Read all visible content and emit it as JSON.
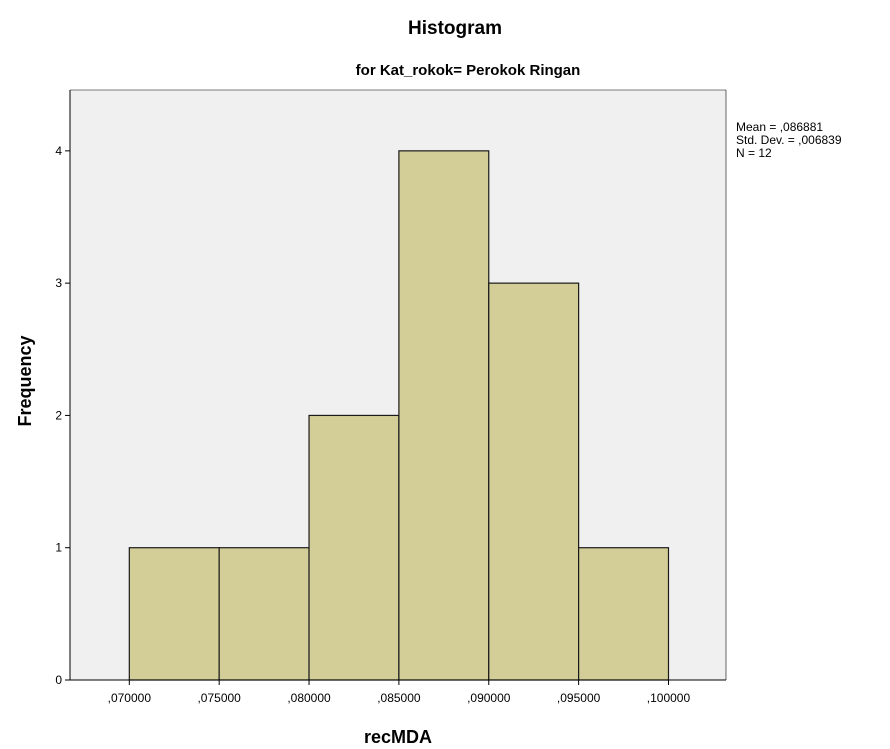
{
  "chart_data": {
    "type": "bar",
    "title": "Histogram",
    "subtitle": "for Kat_rokok= Perokok Ringan",
    "xlabel": "recMDA",
    "ylabel": "Frequency",
    "bins": [
      {
        "start": 0.07,
        "end": 0.075,
        "count": 1
      },
      {
        "start": 0.075,
        "end": 0.08,
        "count": 1
      },
      {
        "start": 0.08,
        "end": 0.085,
        "count": 2
      },
      {
        "start": 0.085,
        "end": 0.09,
        "count": 4
      },
      {
        "start": 0.09,
        "end": 0.095,
        "count": 3
      },
      {
        "start": 0.095,
        "end": 0.1,
        "count": 1
      }
    ],
    "x_ticks": [
      {
        "value": 0.07,
        "label": ",070000"
      },
      {
        "value": 0.075,
        "label": ",075000"
      },
      {
        "value": 0.08,
        "label": ",080000"
      },
      {
        "value": 0.085,
        "label": ",085000"
      },
      {
        "value": 0.09,
        "label": ",090000"
      },
      {
        "value": 0.095,
        "label": ",095000"
      },
      {
        "value": 0.1,
        "label": ",100000"
      }
    ],
    "y_ticks": [
      {
        "value": 0,
        "label": "0"
      },
      {
        "value": 1,
        "label": "1"
      },
      {
        "value": 2,
        "label": "2"
      },
      {
        "value": 3,
        "label": "3"
      },
      {
        "value": 4,
        "label": "4"
      }
    ],
    "xlim": [
      0.0667,
      0.1032
    ],
    "ylim": [
      0,
      4.46
    ],
    "grid": false,
    "legend": "none",
    "stats": {
      "mean_label": "Mean = ,086881",
      "std_label": "Std. Dev. = ,006839",
      "n_label": "N = 12"
    },
    "colors": {
      "bar_fill": "#d3ce98",
      "bar_stroke": "#1a1a1a",
      "plot_background": "#f0f0f0",
      "axis": "#000000"
    }
  }
}
